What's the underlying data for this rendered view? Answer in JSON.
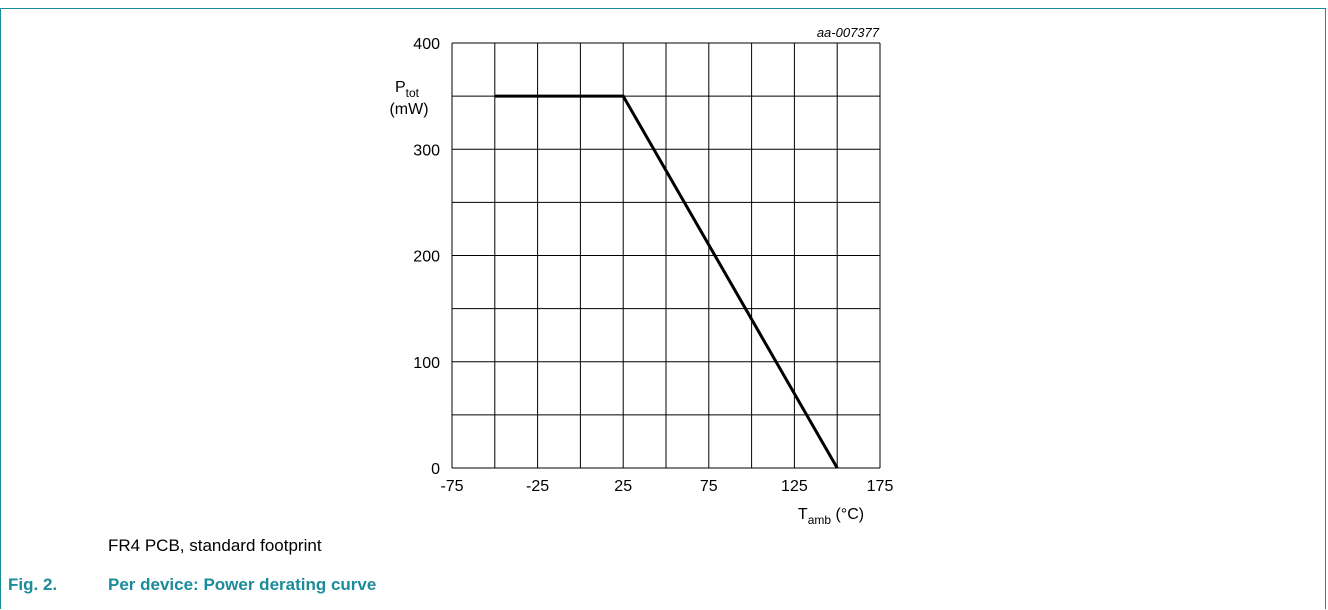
{
  "figure": {
    "code": "aa-007377",
    "note": "FR4 PCB, standard footprint",
    "number": "Fig. 2.",
    "title": "Per device: Power derating curve"
  },
  "axes": {
    "y_label_main": "P",
    "y_label_sub": "tot",
    "y_label_unit": "(mW)",
    "x_label_main": "T",
    "x_label_sub": "amb",
    "x_label_unit": " (°C)"
  },
  "colors": {
    "accent": "#1a8c9a",
    "grid": "#000000",
    "curve": "#000000"
  },
  "chart_data": {
    "type": "line",
    "series": [
      {
        "x": [
          -50,
          25,
          150
        ],
        "y": [
          350,
          350,
          0
        ]
      }
    ],
    "xlim": [
      -75,
      175
    ],
    "ylim": [
      0,
      400
    ],
    "x_ticks": [
      -75,
      -25,
      25,
      75,
      125,
      175
    ],
    "y_ticks": [
      0,
      100,
      200,
      300,
      400
    ],
    "x_grid_step": 25,
    "y_grid_step": 50,
    "grid": true
  }
}
